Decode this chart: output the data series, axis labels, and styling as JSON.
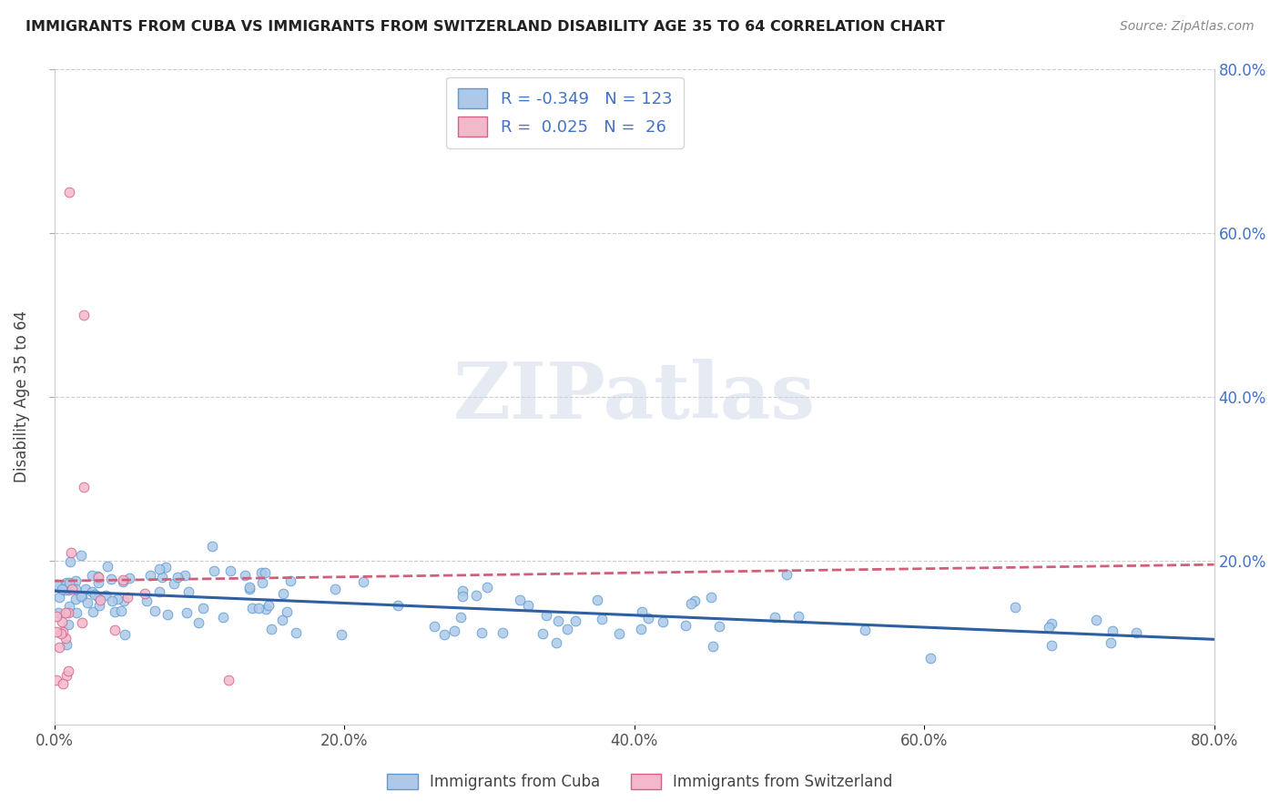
{
  "title": "IMMIGRANTS FROM CUBA VS IMMIGRANTS FROM SWITZERLAND DISABILITY AGE 35 TO 64 CORRELATION CHART",
  "source": "Source: ZipAtlas.com",
  "ylabel": "Disability Age 35 to 64",
  "xlim": [
    0.0,
    0.8
  ],
  "ylim": [
    0.0,
    0.8
  ],
  "xtick_labels": [
    "0.0%",
    "20.0%",
    "40.0%",
    "60.0%",
    "80.0%"
  ],
  "xtick_vals": [
    0.0,
    0.2,
    0.4,
    0.6,
    0.8
  ],
  "ytick_labels_right": [
    "20.0%",
    "40.0%",
    "60.0%",
    "80.0%"
  ],
  "ytick_vals": [
    0.2,
    0.4,
    0.6,
    0.8
  ],
  "cuba_color": "#aec9e8",
  "cuba_edge": "#5b9bd5",
  "swiss_color": "#f4b8cb",
  "swiss_edge": "#d75f8a",
  "cuba_R": -0.349,
  "cuba_N": 123,
  "swiss_R": 0.025,
  "swiss_N": 26,
  "cuba_line_color": "#2e5fa3",
  "swiss_line_color": "#d0607a",
  "watermark_text": "ZIPatlas",
  "legend_label_cuba": "Immigrants from Cuba",
  "legend_label_swiss": "Immigrants from Switzerland",
  "text_color_blue": "#4472c4",
  "title_color": "#222222",
  "source_color": "#888888",
  "grid_color": "#cccccc",
  "tick_color": "#555555"
}
